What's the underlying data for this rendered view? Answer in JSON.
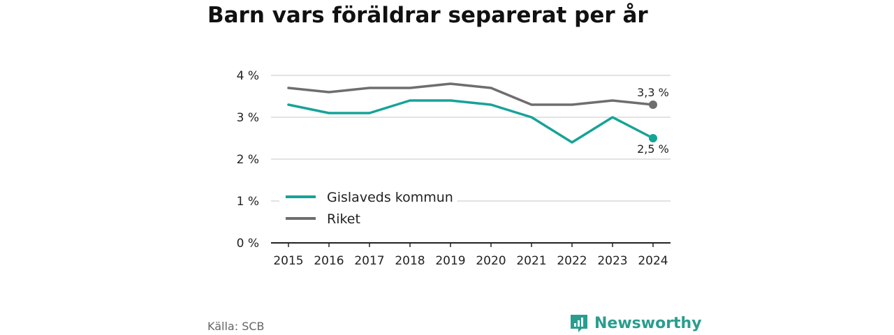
{
  "title": "Barn vars föräldrar separerat per år",
  "source": "Källa: SCB",
  "brand": {
    "name": "Newsworthy",
    "icon": "newsworthy-logo-icon",
    "color": "#2a9d8f"
  },
  "chart_data": {
    "type": "line",
    "title": "Barn vars föräldrar separerat per år",
    "xlabel": "",
    "ylabel": "",
    "x": [
      2015,
      2016,
      2017,
      2018,
      2019,
      2020,
      2021,
      2022,
      2023,
      2024
    ],
    "ylim": [
      0,
      4
    ],
    "yticks": [
      0,
      1,
      2,
      3,
      4
    ],
    "ytick_labels": [
      "0 %",
      "1 %",
      "2 %",
      "3 %",
      "4 %"
    ],
    "grid": true,
    "legend_position": "center-left",
    "series": [
      {
        "name": "Gislaveds kommun",
        "color": "#17a398",
        "values": [
          3.3,
          3.1,
          3.1,
          3.4,
          3.4,
          3.3,
          3.0,
          2.4,
          3.0,
          2.5
        ],
        "end_label": "2,5 %"
      },
      {
        "name": "Riket",
        "color": "#6e6e70",
        "values": [
          3.7,
          3.6,
          3.7,
          3.7,
          3.8,
          3.7,
          3.3,
          3.3,
          3.4,
          3.3
        ],
        "end_label": "3,3 %"
      }
    ]
  }
}
